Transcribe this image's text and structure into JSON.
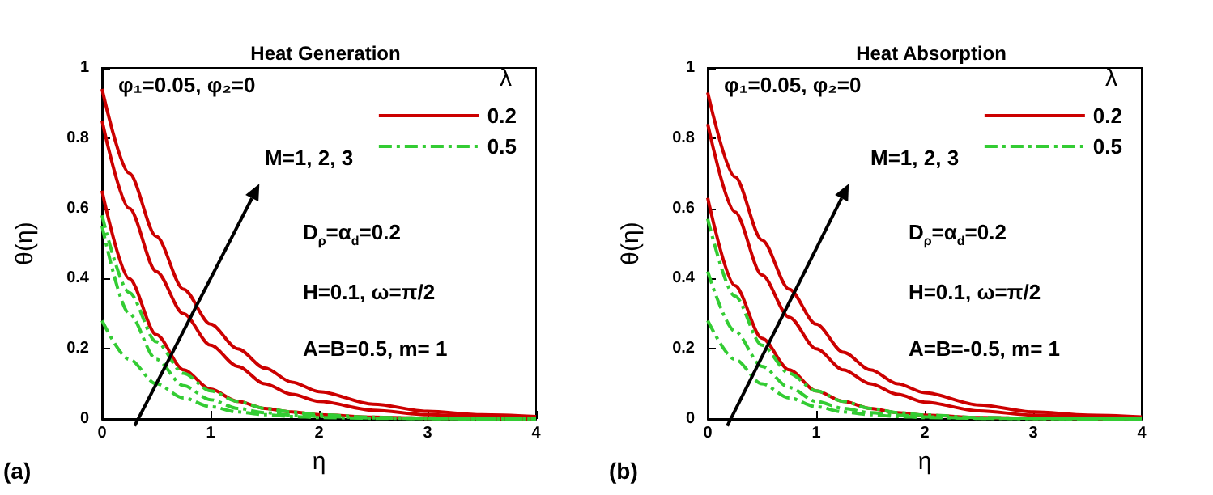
{
  "chart_data": [
    {
      "type": "line",
      "title": "Heat Generation",
      "xlabel": "η",
      "ylabel": "θ(η)",
      "legend_title": "λ",
      "legend": "top right",
      "grid": false,
      "marker": "none",
      "annotations": [
        "φ₁=0.05, φ₂=0",
        "M=1, 2, 3",
        "D$_{ρ}$=α$_{d}$=0.2",
        "H=0.1, ω=π/2",
        "A=B=0.5, m= 1",
        "(a)"
      ],
      "xlim": [
        0,
        4
      ],
      "xticks": [
        0,
        1,
        2,
        3,
        4
      ],
      "ylim": [
        0,
        1
      ],
      "yticks": [
        0,
        0.2,
        0.4,
        0.6,
        0.8,
        1
      ],
      "x": [
        0,
        0.25,
        0.5,
        0.75,
        1,
        1.25,
        1.5,
        1.75,
        2,
        2.5,
        3,
        3.5,
        4
      ],
      "series": [
        {
          "name": "0.2",
          "color": "#cc0000",
          "line_style": "solid",
          "values": [
            0.94,
            0.7,
            0.52,
            0.37,
            0.27,
            0.2,
            0.145,
            0.105,
            0.078,
            0.042,
            0.022,
            0.012,
            0.007
          ]
        },
        {
          "color": "#cc0000",
          "line_style": "solid",
          "values": [
            0.85,
            0.6,
            0.42,
            0.3,
            0.21,
            0.15,
            0.1,
            0.07,
            0.05,
            0.025,
            0.012,
            0.006,
            0.003
          ]
        },
        {
          "color": "#cc0000",
          "line_style": "solid",
          "values": [
            0.65,
            0.4,
            0.24,
            0.14,
            0.085,
            0.05,
            0.03,
            0.02,
            0.012,
            0.005,
            0.002,
            0.001,
            0
          ]
        },
        {
          "name": "0.5",
          "color": "#33cc33",
          "line_style": "dashdot",
          "values": [
            0.58,
            0.36,
            0.22,
            0.13,
            0.08,
            0.05,
            0.03,
            0.02,
            0.012,
            0.005,
            0.002,
            0.001,
            0
          ]
        },
        {
          "color": "#33cc33",
          "line_style": "dashdot",
          "values": [
            0.55,
            0.3,
            0.17,
            0.095,
            0.055,
            0.03,
            0.018,
            0.011,
            0.007,
            0.003,
            0.001,
            0,
            0
          ]
        },
        {
          "color": "#33cc33",
          "line_style": "dashdot",
          "values": [
            0.28,
            0.17,
            0.1,
            0.06,
            0.035,
            0.02,
            0.012,
            0.007,
            0.004,
            0.002,
            0.001,
            0,
            0
          ]
        }
      ]
    },
    {
      "type": "line",
      "title": "Heat Absorption",
      "xlabel": "η",
      "ylabel": "θ(η)",
      "legend_title": "λ",
      "legend": "top right",
      "grid": false,
      "marker": "none",
      "annotations": [
        "φ₁=0.05, φ₂=0",
        "M=1, 2, 3",
        "D$_{ρ}$=α$_{d}$=0.2",
        "H=0.1, ω=π/2",
        "A=B=-0.5, m= 1",
        "(b)"
      ],
      "xlim": [
        0,
        4
      ],
      "xticks": [
        0,
        1,
        2,
        3,
        4
      ],
      "ylim": [
        0,
        1
      ],
      "yticks": [
        0,
        0.2,
        0.4,
        0.6,
        0.8,
        1
      ],
      "x": [
        0,
        0.25,
        0.5,
        0.75,
        1,
        1.25,
        1.5,
        1.75,
        2,
        2.5,
        3,
        3.5,
        4
      ],
      "series": [
        {
          "name": "0.2",
          "color": "#cc0000",
          "line_style": "solid",
          "values": [
            0.93,
            0.69,
            0.51,
            0.37,
            0.27,
            0.19,
            0.14,
            0.1,
            0.075,
            0.04,
            0.02,
            0.011,
            0.006
          ]
        },
        {
          "color": "#cc0000",
          "line_style": "solid",
          "values": [
            0.84,
            0.59,
            0.41,
            0.29,
            0.2,
            0.14,
            0.1,
            0.07,
            0.048,
            0.023,
            0.011,
            0.005,
            0.003
          ]
        },
        {
          "color": "#cc0000",
          "line_style": "solid",
          "values": [
            0.63,
            0.38,
            0.23,
            0.14,
            0.08,
            0.05,
            0.03,
            0.018,
            0.011,
            0.004,
            0.002,
            0.001,
            0
          ]
        },
        {
          "name": "0.5",
          "color": "#33cc33",
          "line_style": "dashdot",
          "values": [
            0.57,
            0.35,
            0.21,
            0.13,
            0.08,
            0.05,
            0.03,
            0.018,
            0.011,
            0.004,
            0.002,
            0.001,
            0
          ]
        },
        {
          "color": "#33cc33",
          "line_style": "dashdot",
          "values": [
            0.42,
            0.25,
            0.15,
            0.09,
            0.05,
            0.03,
            0.018,
            0.011,
            0.006,
            0.002,
            0.001,
            0,
            0
          ]
        },
        {
          "color": "#33cc33",
          "line_style": "dashdot",
          "values": [
            0.28,
            0.17,
            0.1,
            0.06,
            0.035,
            0.02,
            0.012,
            0.007,
            0.004,
            0.002,
            0.001,
            0,
            0
          ]
        }
      ]
    }
  ]
}
